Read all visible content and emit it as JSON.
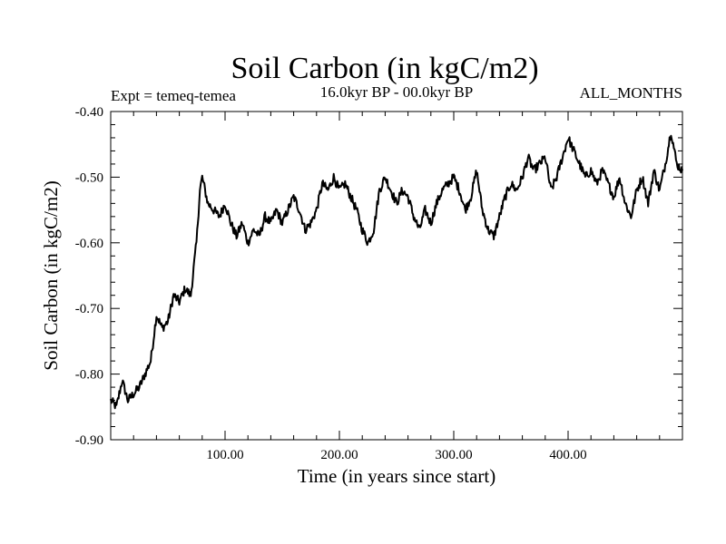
{
  "chart_data": {
    "type": "line",
    "title": "Soil Carbon (in kgC/m2)",
    "subtitle_left": "Expt = temeq-temea",
    "subtitle_center": "16.0kyr BP - 00.0kyr BP",
    "subtitle_right": "ALL_MONTHS",
    "xlabel": "Time (in years since start)",
    "ylabel": "Soil Carbon (in kgC/m2)",
    "xlim": [
      0,
      500
    ],
    "ylim": [
      -0.9,
      -0.4
    ],
    "xticks": [
      100,
      200,
      300,
      400
    ],
    "xtick_labels": [
      "100.00",
      "200.00",
      "300.00",
      "400.00"
    ],
    "yticks": [
      -0.9,
      -0.8,
      -0.7,
      -0.6,
      -0.5,
      -0.4
    ],
    "ytick_labels": [
      "-0.90",
      "-0.80",
      "-0.70",
      "-0.60",
      "-0.50",
      "-0.40"
    ],
    "series": [
      {
        "name": "Soil Carbon",
        "color": "#000000",
        "x": [
          0,
          5,
          10,
          15,
          20,
          25,
          30,
          35,
          40,
          45,
          50,
          55,
          60,
          65,
          70,
          75,
          78,
          80,
          85,
          90,
          95,
          100,
          105,
          110,
          115,
          120,
          125,
          130,
          135,
          140,
          145,
          150,
          155,
          160,
          165,
          170,
          175,
          180,
          185,
          190,
          195,
          200,
          205,
          210,
          215,
          220,
          225,
          230,
          235,
          240,
          245,
          250,
          255,
          260,
          265,
          270,
          275,
          280,
          285,
          290,
          295,
          300,
          305,
          310,
          315,
          320,
          325,
          330,
          335,
          340,
          345,
          350,
          355,
          360,
          365,
          370,
          375,
          380,
          385,
          390,
          395,
          400,
          405,
          410,
          415,
          420,
          425,
          430,
          435,
          440,
          445,
          450,
          455,
          460,
          465,
          470,
          475,
          480,
          485,
          490,
          495,
          500
        ],
        "y": [
          -0.84,
          -0.85,
          -0.81,
          -0.84,
          -0.83,
          -0.82,
          -0.8,
          -0.78,
          -0.71,
          -0.73,
          -0.72,
          -0.68,
          -0.69,
          -0.67,
          -0.68,
          -0.6,
          -0.52,
          -0.5,
          -0.54,
          -0.55,
          -0.56,
          -0.54,
          -0.57,
          -0.59,
          -0.57,
          -0.6,
          -0.58,
          -0.59,
          -0.56,
          -0.57,
          -0.55,
          -0.57,
          -0.55,
          -0.53,
          -0.55,
          -0.58,
          -0.57,
          -0.55,
          -0.51,
          -0.52,
          -0.5,
          -0.52,
          -0.51,
          -0.53,
          -0.55,
          -0.58,
          -0.6,
          -0.58,
          -0.52,
          -0.5,
          -0.52,
          -0.54,
          -0.52,
          -0.53,
          -0.56,
          -0.58,
          -0.55,
          -0.57,
          -0.54,
          -0.52,
          -0.51,
          -0.5,
          -0.52,
          -0.55,
          -0.53,
          -0.49,
          -0.55,
          -0.58,
          -0.59,
          -0.56,
          -0.53,
          -0.51,
          -0.52,
          -0.5,
          -0.47,
          -0.49,
          -0.48,
          -0.47,
          -0.52,
          -0.5,
          -0.47,
          -0.44,
          -0.46,
          -0.48,
          -0.5,
          -0.49,
          -0.51,
          -0.49,
          -0.51,
          -0.53,
          -0.5,
          -0.54,
          -0.56,
          -0.52,
          -0.5,
          -0.54,
          -0.49,
          -0.52,
          -0.48,
          -0.43,
          -0.48,
          -0.49
        ]
      }
    ]
  }
}
